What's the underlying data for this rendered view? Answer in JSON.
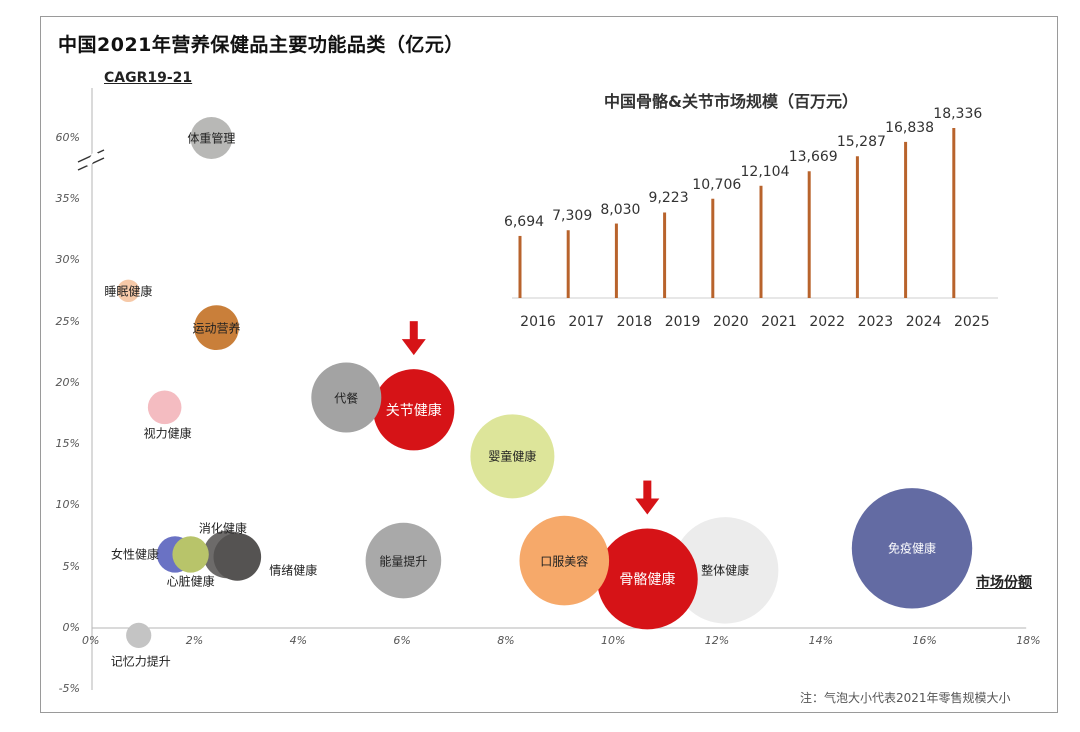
{
  "title": "中国2021年营养保健品主要功能品类（亿元）",
  "note": "注：气泡大小代表2021年零售规模大小",
  "chart_data": [
    {
      "type": "scatter",
      "title": "中国2021年营养保健品主要功能品类（亿元）",
      "xlabel": "市场份额",
      "ylabel": "CAGR19-21",
      "x_ticks": [
        "0%",
        "2%",
        "4%",
        "6%",
        "8%",
        "10%",
        "12%",
        "14%",
        "16%",
        "18%"
      ],
      "y_ticks": [
        "-5%",
        "0%",
        "5%",
        "10%",
        "15%",
        "20%",
        "25%",
        "30%",
        "35%",
        "60%"
      ],
      "xlim": [
        0,
        18
      ],
      "y_break": "between 35% and 60%",
      "grid": false,
      "points": [
        {
          "name": "体重管理",
          "x": 2.3,
          "y": 60,
          "size": 1.5,
          "color": "#b8b8b6"
        },
        {
          "name": "睡眠健康",
          "x": 0.7,
          "y": 27.5,
          "size": 0.8,
          "color": "#f6c9a8"
        },
        {
          "name": "运动营养",
          "x": 2.4,
          "y": 24.5,
          "size": 1.6,
          "color": "#c97f3a"
        },
        {
          "name": "视力健康",
          "x": 1.4,
          "y": 18,
          "size": 1.2,
          "color": "#f4bcc1"
        },
        {
          "name": "代餐",
          "x": 4.9,
          "y": 18.8,
          "size": 2.5,
          "color": "#a3a3a3"
        },
        {
          "name": "关节健康",
          "x": 6.2,
          "y": 17.8,
          "size": 2.9,
          "color": "#d61317"
        },
        {
          "name": "婴童健康",
          "x": 8.1,
          "y": 14,
          "size": 3.0,
          "color": "#dde59a"
        },
        {
          "name": "女性健康",
          "x": 1.6,
          "y": 6,
          "size": 1.3,
          "color": "#6a72c4"
        },
        {
          "name": "心脏健康",
          "x": 1.9,
          "y": 6,
          "size": 1.3,
          "color": "#b8c46a"
        },
        {
          "name": "消化健康",
          "x": 2.6,
          "y": 6,
          "size": 1.7,
          "color": "#6d6b6a"
        },
        {
          "name": "情绪健康",
          "x": 2.8,
          "y": 5.8,
          "size": 1.7,
          "color": "#555352"
        },
        {
          "name": "能量提升",
          "x": 6.0,
          "y": 5.5,
          "size": 2.7,
          "color": "#a9a9a9"
        },
        {
          "name": "口服美容",
          "x": 9.1,
          "y": 5.5,
          "size": 3.2,
          "color": "#f6a96a"
        },
        {
          "name": "骨骼健康",
          "x": 10.7,
          "y": 4,
          "size": 3.6,
          "color": "#d61317"
        },
        {
          "name": "整体健康",
          "x": 12.2,
          "y": 4.7,
          "size": 3.8,
          "color": "#ececec"
        },
        {
          "name": "免疫健康",
          "x": 15.8,
          "y": 6.5,
          "size": 4.3,
          "color": "#636ba3"
        },
        {
          "name": "记忆力提升",
          "x": 0.9,
          "y": -0.6,
          "size": 0.9,
          "color": "#c4c4c4"
        }
      ],
      "highlights": [
        "关节健康",
        "骨骼健康"
      ],
      "highlight_color": "#d61317"
    },
    {
      "type": "bar",
      "title": "中国骨骼&关节市场规模（百万元）",
      "categories": [
        "2016",
        "2017",
        "2018",
        "2019",
        "2020",
        "2021",
        "2022",
        "2023",
        "2024",
        "2025"
      ],
      "values": [
        6694,
        7309,
        8030,
        9223,
        10706,
        12104,
        13669,
        15287,
        16838,
        18336
      ],
      "value_labels": [
        "6,694",
        "7,309",
        "8,030",
        "9,223",
        "10,706",
        "12,104",
        "13,669",
        "15,287",
        "16,838",
        "18,336"
      ],
      "ylim": [
        0,
        18336
      ],
      "color": "#b8632c"
    }
  ]
}
